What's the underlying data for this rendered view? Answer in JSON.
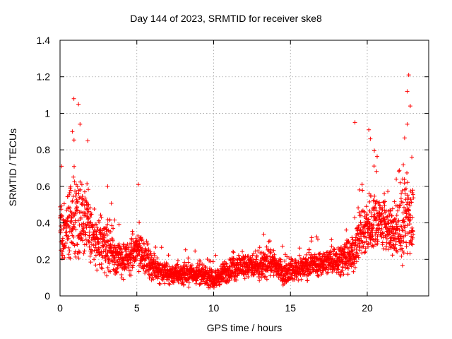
{
  "chart_data": {
    "type": "scatter",
    "title": "Day 144 of 2023, SRMTID for receiver ske8",
    "xlabel": "GPS time / hours",
    "ylabel": "SRMTID / TECUs",
    "xlim": [
      0,
      24
    ],
    "ylim": [
      0,
      1.4
    ],
    "xticks": [
      0,
      5,
      10,
      15,
      20
    ],
    "xtick_labels": [
      "0",
      "5",
      "10",
      "15",
      "20"
    ],
    "yticks": [
      0,
      0.2,
      0.4,
      0.6,
      0.8,
      1.0,
      1.2,
      1.4
    ],
    "ytick_labels": [
      "0",
      "0.2",
      "0.4",
      "0.6",
      "0.8",
      "1",
      "1.2",
      "1.4"
    ],
    "grid": true,
    "marker": "+",
    "series": [
      {
        "name": "SRMTID",
        "color": "#ff0000",
        "envelope": [
          {
            "x": 0.0,
            "y": 0.32,
            "spread": 0.18
          },
          {
            "x": 0.5,
            "y": 0.36,
            "spread": 0.18
          },
          {
            "x": 1.0,
            "y": 0.45,
            "spread": 0.22
          },
          {
            "x": 1.5,
            "y": 0.45,
            "spread": 0.2
          },
          {
            "x": 2.0,
            "y": 0.35,
            "spread": 0.15
          },
          {
            "x": 2.5,
            "y": 0.27,
            "spread": 0.12
          },
          {
            "x": 3.0,
            "y": 0.3,
            "spread": 0.14
          },
          {
            "x": 3.5,
            "y": 0.22,
            "spread": 0.1
          },
          {
            "x": 4.0,
            "y": 0.2,
            "spread": 0.09
          },
          {
            "x": 4.5,
            "y": 0.2,
            "spread": 0.08
          },
          {
            "x": 5.0,
            "y": 0.26,
            "spread": 0.11
          },
          {
            "x": 5.5,
            "y": 0.22,
            "spread": 0.09
          },
          {
            "x": 6.0,
            "y": 0.16,
            "spread": 0.06
          },
          {
            "x": 7.0,
            "y": 0.12,
            "spread": 0.05
          },
          {
            "x": 8.0,
            "y": 0.12,
            "spread": 0.05
          },
          {
            "x": 9.0,
            "y": 0.12,
            "spread": 0.05
          },
          {
            "x": 10.0,
            "y": 0.09,
            "spread": 0.04
          },
          {
            "x": 11.0,
            "y": 0.14,
            "spread": 0.06
          },
          {
            "x": 12.0,
            "y": 0.17,
            "spread": 0.06
          },
          {
            "x": 13.0,
            "y": 0.15,
            "spread": 0.06
          },
          {
            "x": 13.7,
            "y": 0.2,
            "spread": 0.08
          },
          {
            "x": 14.5,
            "y": 0.12,
            "spread": 0.05
          },
          {
            "x": 15.0,
            "y": 0.14,
            "spread": 0.05
          },
          {
            "x": 16.0,
            "y": 0.16,
            "spread": 0.06
          },
          {
            "x": 17.0,
            "y": 0.18,
            "spread": 0.06
          },
          {
            "x": 18.0,
            "y": 0.2,
            "spread": 0.07
          },
          {
            "x": 19.0,
            "y": 0.22,
            "spread": 0.08
          },
          {
            "x": 19.5,
            "y": 0.33,
            "spread": 0.12
          },
          {
            "x": 20.0,
            "y": 0.38,
            "spread": 0.14
          },
          {
            "x": 20.5,
            "y": 0.42,
            "spread": 0.15
          },
          {
            "x": 21.0,
            "y": 0.4,
            "spread": 0.14
          },
          {
            "x": 21.5,
            "y": 0.35,
            "spread": 0.12
          },
          {
            "x": 22.0,
            "y": 0.34,
            "spread": 0.13
          },
          {
            "x": 22.5,
            "y": 0.45,
            "spread": 0.2
          },
          {
            "x": 23.0,
            "y": 0.4,
            "spread": 0.18
          }
        ],
        "x_range_observed": [
          0.0,
          23.0
        ],
        "notable_peaks": [
          {
            "x": 0.9,
            "y": 1.08
          },
          {
            "x": 1.2,
            "y": 1.05
          },
          {
            "x": 1.3,
            "y": 0.94
          },
          {
            "x": 0.8,
            "y": 0.9
          },
          {
            "x": 1.8,
            "y": 0.85
          },
          {
            "x": 0.1,
            "y": 0.71
          },
          {
            "x": 3.1,
            "y": 0.6
          },
          {
            "x": 5.1,
            "y": 0.61
          },
          {
            "x": 19.2,
            "y": 0.95
          },
          {
            "x": 20.1,
            "y": 0.91
          },
          {
            "x": 20.2,
            "y": 0.86
          },
          {
            "x": 22.7,
            "y": 1.21
          },
          {
            "x": 22.6,
            "y": 1.12
          },
          {
            "x": 22.8,
            "y": 1.04
          },
          {
            "x": 22.6,
            "y": 0.94
          },
          {
            "x": 22.9,
            "y": 0.76
          }
        ]
      }
    ]
  }
}
